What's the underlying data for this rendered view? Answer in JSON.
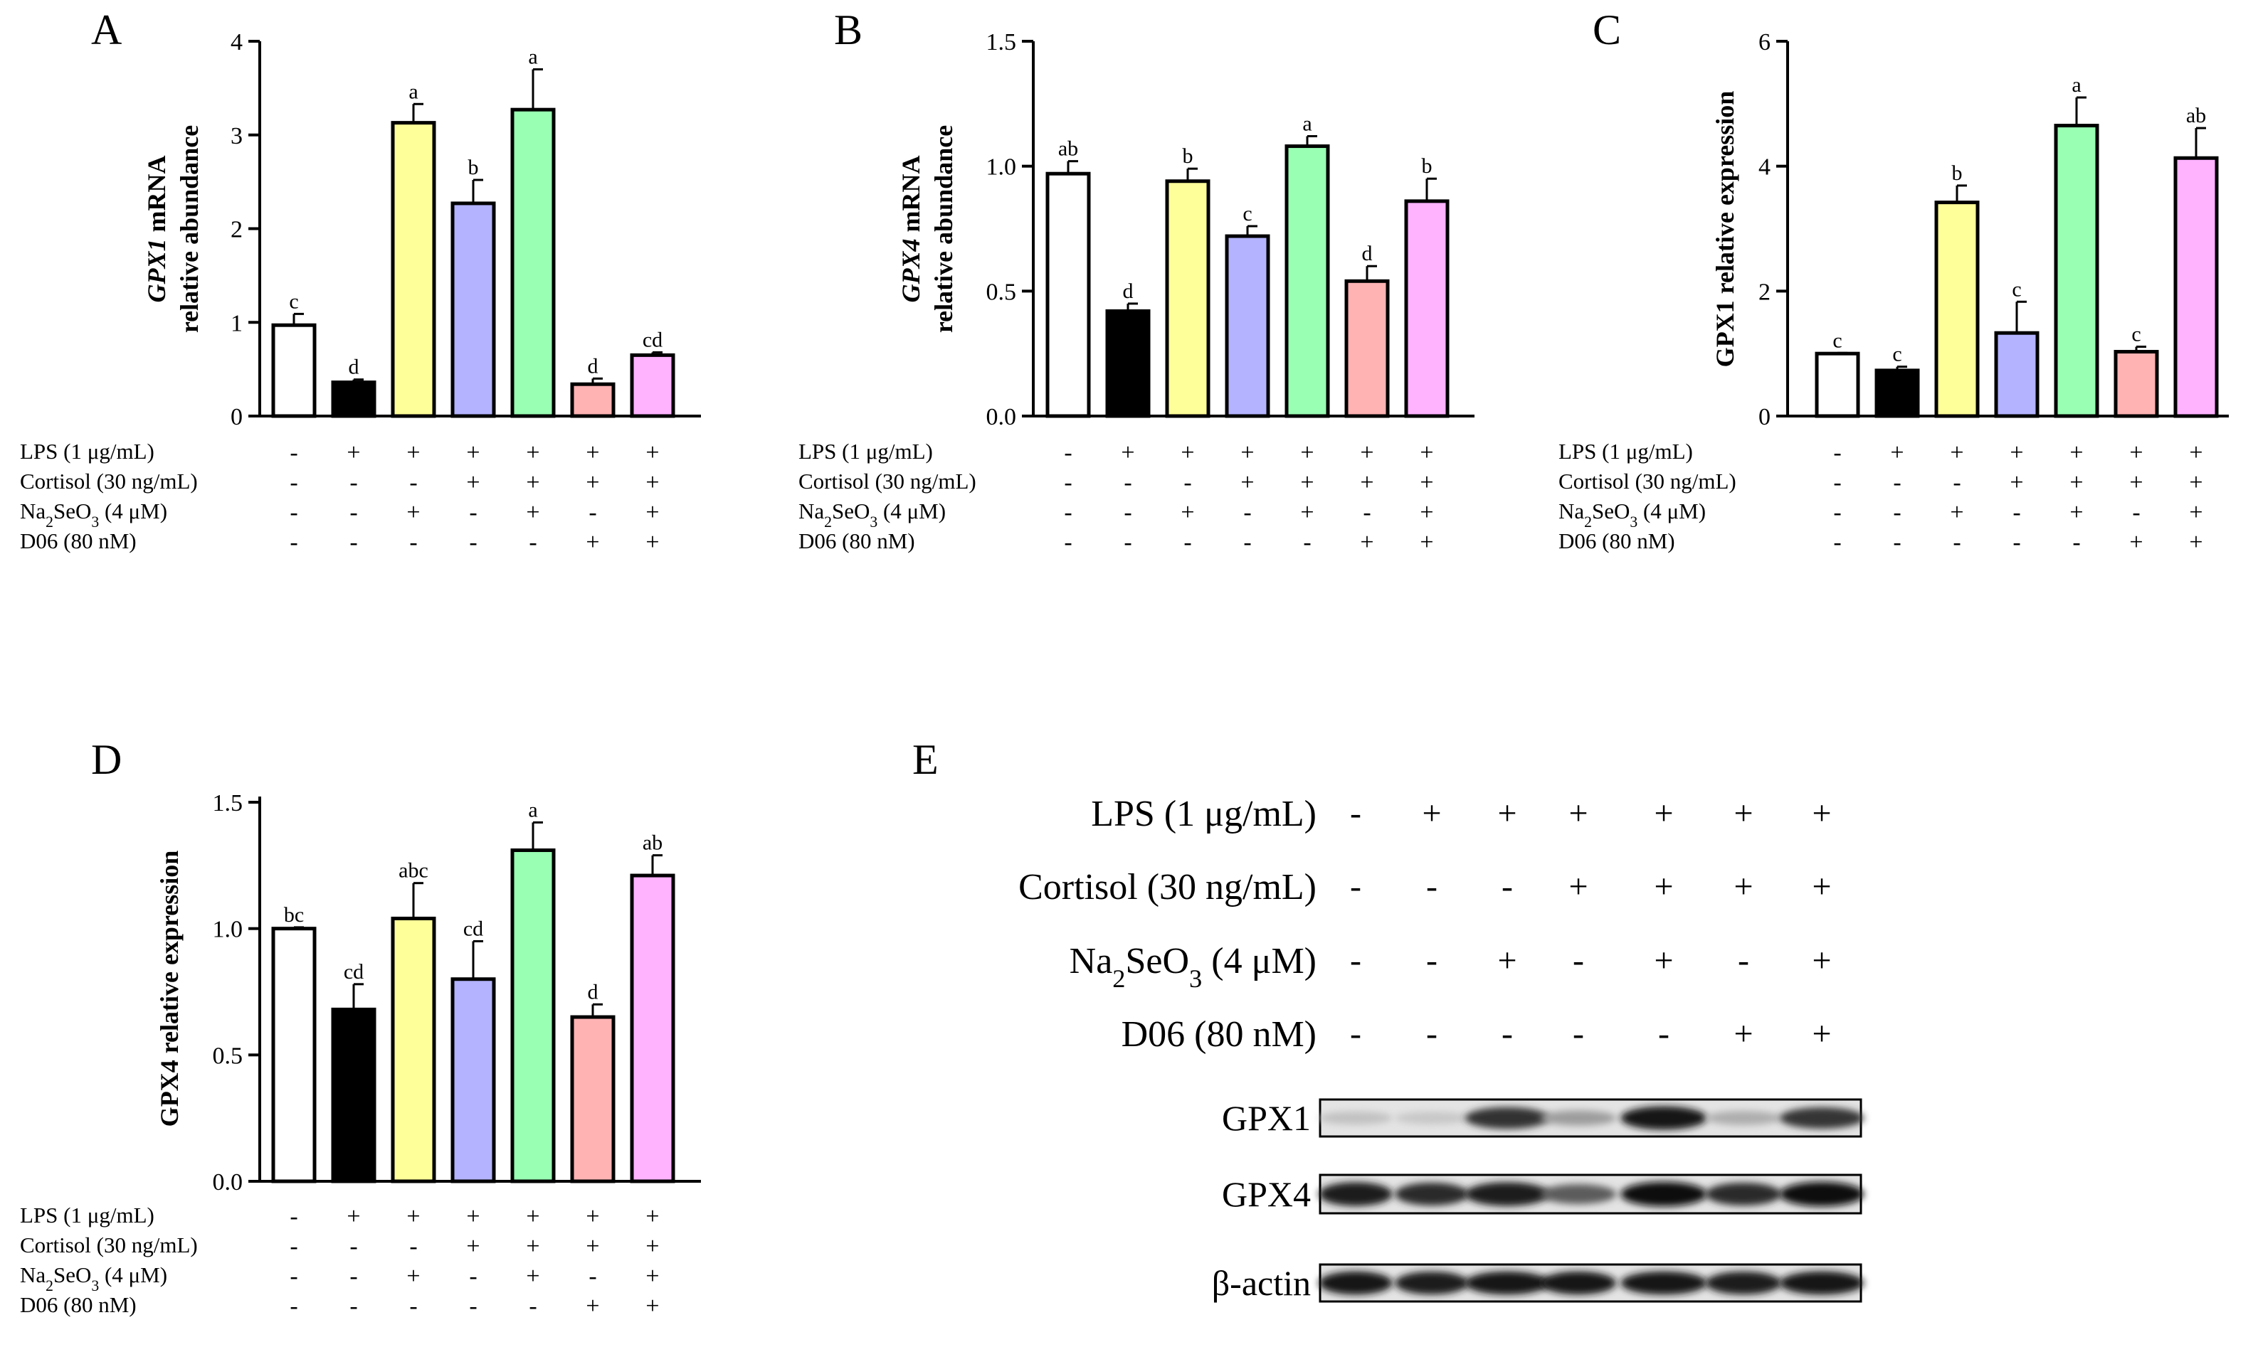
{
  "conditions": {
    "labels": [
      "LPS (1 μg/mL)",
      "Cortisol (30 ng/mL)",
      "Na",
      "SeO",
      "(4 μM)",
      "D06 (80 nM)"
    ],
    "subscripts": [
      "2",
      "3"
    ],
    "signs": [
      [
        "-",
        "+",
        "+",
        "+",
        "+",
        "+",
        "+"
      ],
      [
        "-",
        "-",
        "-",
        "+",
        "+",
        "+",
        "+"
      ],
      [
        "-",
        "-",
        "+",
        "-",
        "+",
        "-",
        "+"
      ],
      [
        "-",
        "-",
        "-",
        "-",
        "-",
        "+",
        "+"
      ]
    ]
  },
  "colors": {
    "bars": [
      "#ffffff",
      "#000000",
      "#ffff99",
      "#b3b3ff",
      "#99ffb3",
      "#ffb3b3",
      "#ffb3ff"
    ],
    "axis": "#000000"
  },
  "chart_data": [
    {
      "panel": "A",
      "type": "bar",
      "ylabel_italic": "GPX1",
      "ylabel_rest": "mRNA",
      "ylabel_line2": "relative abundance",
      "ylim": [
        0,
        4
      ],
      "yticks": [
        "0",
        "1",
        "2",
        "3",
        "4"
      ],
      "ytick_values": [
        0,
        1,
        2,
        3,
        4
      ],
      "values": [
        0.97,
        0.36,
        3.13,
        2.27,
        3.27,
        0.34,
        0.65
      ],
      "errors": [
        0.12,
        0.03,
        0.2,
        0.25,
        0.43,
        0.06,
        0.03
      ],
      "letters": [
        "c",
        "d",
        "a",
        "b",
        "a",
        "d",
        "cd"
      ]
    },
    {
      "panel": "B",
      "type": "bar",
      "ylabel_italic": "GPX4",
      "ylabel_rest": "mRNA",
      "ylabel_line2": "relative abundance",
      "ylim": [
        0,
        1.5
      ],
      "yticks": [
        "0.0",
        "0.5",
        "1.0",
        "1.5"
      ],
      "ytick_values": [
        0,
        0.5,
        1.0,
        1.5
      ],
      "values": [
        0.97,
        0.42,
        0.94,
        0.72,
        1.08,
        0.54,
        0.86
      ],
      "errors": [
        0.05,
        0.03,
        0.05,
        0.04,
        0.04,
        0.06,
        0.09
      ],
      "letters": [
        "ab",
        "d",
        "b",
        "c",
        "a",
        "d",
        "b"
      ]
    },
    {
      "panel": "C",
      "type": "bar",
      "ylabel": "GPX1 relative expression",
      "ylim": [
        0,
        6
      ],
      "yticks": [
        "0",
        "2",
        "4",
        "6"
      ],
      "ytick_values": [
        0,
        2,
        4,
        6
      ],
      "values": [
        1.0,
        0.73,
        3.42,
        1.33,
        4.65,
        1.03,
        4.13
      ],
      "errors": [
        0.01,
        0.06,
        0.27,
        0.5,
        0.45,
        0.08,
        0.48
      ],
      "letters": [
        "c",
        "c",
        "b",
        "c",
        "a",
        "c",
        "ab"
      ]
    },
    {
      "panel": "D",
      "type": "bar",
      "ylabel": "GPX4  relative expression",
      "ylim": [
        0,
        1.5
      ],
      "yticks": [
        "0.0",
        "0.5",
        "1.0",
        "1.5"
      ],
      "ytick_values": [
        0,
        0.5,
        1.0,
        1.5
      ],
      "values": [
        1.0,
        0.68,
        1.04,
        0.8,
        1.31,
        0.65,
        1.21
      ],
      "errors": [
        0.005,
        0.1,
        0.14,
        0.15,
        0.11,
        0.05,
        0.08
      ],
      "letters": [
        "bc",
        "cd",
        "abc",
        "cd",
        "a",
        "d",
        "ab"
      ]
    }
  ],
  "blot": {
    "panel": "E",
    "rows": [
      "GPX1",
      "GPX4",
      "β-actin"
    ],
    "intensities": [
      [
        0.15,
        0.12,
        0.82,
        0.32,
        0.95,
        0.24,
        0.8
      ],
      [
        0.92,
        0.85,
        0.92,
        0.62,
        0.98,
        0.84,
        0.98
      ],
      [
        0.95,
        0.92,
        0.94,
        0.93,
        0.94,
        0.92,
        0.95
      ]
    ]
  }
}
